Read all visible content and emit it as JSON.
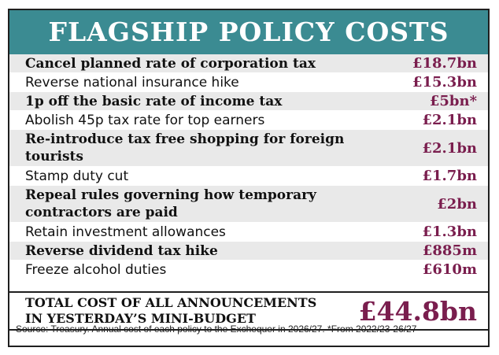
{
  "chart_data": {
    "type": "table",
    "title": "FLAGSHIP POLICY COSTS",
    "rows": [
      {
        "label": "Cancel planned rate of corporation tax",
        "value": "£18.7bn",
        "amount_bn": 18.7,
        "bold": true
      },
      {
        "label": "Reverse national insurance hike",
        "value": "£15.3bn",
        "amount_bn": 15.3,
        "bold": false
      },
      {
        "label": "1p off the basic rate of income tax",
        "value": "£5bn*",
        "amount_bn": 5,
        "bold": true
      },
      {
        "label": "Abolish 45p tax rate for top earners",
        "value": "£2.1bn",
        "amount_bn": 2.1,
        "bold": false
      },
      {
        "label": "Re-introduce tax free shopping for foreign tourists",
        "value": "£2.1bn",
        "amount_bn": 2.1,
        "bold": true
      },
      {
        "label": "Stamp duty cut",
        "value": "£1.7bn",
        "amount_bn": 1.7,
        "bold": false
      },
      {
        "label": "Repeal rules governing how temporary contractors are paid",
        "value": "£2bn",
        "amount_bn": 2,
        "bold": true
      },
      {
        "label": "Retain investment allowances",
        "value": "£1.3bn",
        "amount_bn": 1.3,
        "bold": false
      },
      {
        "label": "Reverse dividend tax hike",
        "value": "£885m",
        "amount_bn": 0.885,
        "bold": true
      },
      {
        "label": "Freeze alcohol duties",
        "value": "£610m",
        "amount_bn": 0.61,
        "bold": false
      }
    ],
    "total": {
      "label_line1": "TOTAL COST OF ALL ANNOUNCEMENTS",
      "label_line2": "IN YESTERDAY’S MINI-BUDGET",
      "value": "£44.8bn",
      "amount_bn": 44.8
    },
    "source": "Source: Treasury. Annual cost of each policy to the Exchequer in 2026/27. *From 2022/23-26/27"
  },
  "colors": {
    "title_bg": "#3b8b92",
    "value_text": "#7a1e4e",
    "stripe": "#e9e9e9"
  }
}
